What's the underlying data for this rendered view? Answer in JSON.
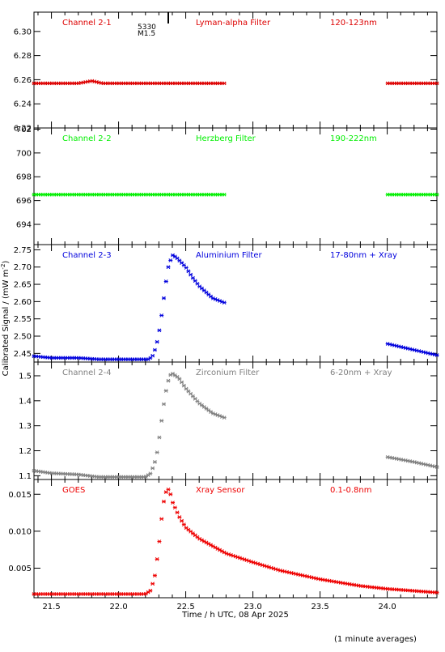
{
  "figure": {
    "ylabel": "Calibrated Signal / (mW m",
    "ylabel_sup": "-2",
    "ylabel_close": ")",
    "xlabel": "Time / h UTC, 08 Apr 2025",
    "footnote": "(1 minute averages)",
    "annotation": {
      "x": 22.37,
      "line1": "5330",
      "line2": "M1.5"
    }
  },
  "chart_data": [
    {
      "type": "scatter",
      "channel": "Channel 2-1",
      "filter": "Lyman-alpha Filter",
      "band": "120-123nm",
      "color": "#dd0000",
      "xlim": [
        21.37,
        24.37
      ],
      "ylim": [
        6.22,
        6.316
      ],
      "yticks": [
        6.22,
        6.24,
        6.26,
        6.28,
        6.3
      ],
      "ytick_labels": [
        "6.22",
        "6.24",
        "6.26",
        "6.28",
        "6.30"
      ],
      "gaps": [
        [
          22.8,
          24.0
        ]
      ],
      "profile": [
        [
          21.37,
          6.257
        ],
        [
          21.7,
          6.257
        ],
        [
          21.8,
          6.259
        ],
        [
          21.88,
          6.257
        ],
        [
          22.8,
          6.257
        ],
        [
          24.0,
          6.257
        ],
        [
          24.37,
          6.257
        ]
      ]
    },
    {
      "type": "scatter",
      "channel": "Channel 2-2",
      "filter": "Herzberg Filter",
      "band": "190-222nm",
      "color": "#00ee00",
      "xlim": [
        21.37,
        24.37
      ],
      "ylim": [
        692.3,
        702.1
      ],
      "yticks": [
        694,
        696,
        698,
        700,
        702
      ],
      "ytick_labels": [
        "694",
        "696",
        "698",
        "700",
        "702"
      ],
      "gaps": [
        [
          22.8,
          24.0
        ]
      ],
      "profile": [
        [
          21.37,
          696.5
        ],
        [
          22.8,
          696.5
        ],
        [
          24.0,
          696.5
        ],
        [
          24.37,
          696.5
        ]
      ]
    },
    {
      "type": "scatter",
      "channel": "Channel 2-3",
      "filter": "Aluminium Filter",
      "band": "17-80nm + Xray",
      "color": "#0000dd",
      "xlim": [
        21.37,
        24.37
      ],
      "ylim": [
        2.425,
        2.765
      ],
      "yticks": [
        2.45,
        2.5,
        2.55,
        2.6,
        2.65,
        2.7,
        2.75
      ],
      "ytick_labels": [
        "2.45",
        "2.50",
        "2.55",
        "2.60",
        "2.65",
        "2.70",
        "2.75"
      ],
      "gaps": [
        [
          22.8,
          24.0
        ]
      ],
      "profile": [
        [
          21.37,
          2.442
        ],
        [
          21.5,
          2.437
        ],
        [
          21.7,
          2.437
        ],
        [
          21.85,
          2.433
        ],
        [
          22.22,
          2.433
        ],
        [
          22.25,
          2.44
        ],
        [
          22.28,
          2.47
        ],
        [
          22.31,
          2.53
        ],
        [
          22.33,
          2.59
        ],
        [
          22.35,
          2.65
        ],
        [
          22.37,
          2.7
        ],
        [
          22.4,
          2.735
        ],
        [
          22.43,
          2.728
        ],
        [
          22.5,
          2.7
        ],
        [
          22.55,
          2.67
        ],
        [
          22.6,
          2.645
        ],
        [
          22.7,
          2.61
        ],
        [
          22.8,
          2.595
        ],
        [
          24.0,
          2.478
        ],
        [
          24.2,
          2.46
        ],
        [
          24.37,
          2.445
        ]
      ]
    },
    {
      "type": "scatter",
      "channel": "Channel 2-4",
      "filter": "Zirconium Filter",
      "band": "6-20nm + Xray",
      "color": "#808080",
      "xlim": [
        21.37,
        24.37
      ],
      "ylim": [
        1.085,
        1.555
      ],
      "yticks": [
        1.1,
        1.2,
        1.3,
        1.4,
        1.5
      ],
      "ytick_labels": [
        "1.1",
        "1.2",
        "1.3",
        "1.4",
        "1.5"
      ],
      "gaps": [
        [
          22.8,
          24.0
        ]
      ],
      "profile": [
        [
          21.37,
          1.12
        ],
        [
          21.5,
          1.11
        ],
        [
          21.7,
          1.105
        ],
        [
          21.85,
          1.095
        ],
        [
          22.2,
          1.095
        ],
        [
          22.24,
          1.11
        ],
        [
          22.28,
          1.17
        ],
        [
          22.3,
          1.24
        ],
        [
          22.32,
          1.32
        ],
        [
          22.34,
          1.4
        ],
        [
          22.36,
          1.46
        ],
        [
          22.38,
          1.5
        ],
        [
          22.4,
          1.51
        ],
        [
          22.45,
          1.49
        ],
        [
          22.5,
          1.45
        ],
        [
          22.6,
          1.39
        ],
        [
          22.7,
          1.35
        ],
        [
          22.8,
          1.33
        ],
        [
          24.0,
          1.175
        ],
        [
          24.2,
          1.155
        ],
        [
          24.37,
          1.135
        ]
      ]
    },
    {
      "type": "scatter",
      "channel": "GOES",
      "filter": "Xray Sensor",
      "band": "0.1-0.8nm",
      "color": "#ee0000",
      "xlim": [
        21.37,
        24.37
      ],
      "ylim": [
        0.001,
        0.017
      ],
      "yticks": [
        0.005,
        0.01,
        0.015
      ],
      "ytick_labels": [
        "0.005",
        "0.010",
        "0.015"
      ],
      "gaps": [],
      "profile": [
        [
          21.37,
          0.0015
        ],
        [
          21.8,
          0.0015
        ],
        [
          22.2,
          0.0015
        ],
        [
          22.24,
          0.002
        ],
        [
          22.27,
          0.004
        ],
        [
          22.3,
          0.008
        ],
        [
          22.33,
          0.0135
        ],
        [
          22.36,
          0.0158
        ],
        [
          22.38,
          0.0155
        ],
        [
          22.4,
          0.014
        ],
        [
          22.45,
          0.012
        ],
        [
          22.5,
          0.0105
        ],
        [
          22.6,
          0.009
        ],
        [
          22.8,
          0.007
        ],
        [
          23.0,
          0.0058
        ],
        [
          23.2,
          0.0047
        ],
        [
          23.5,
          0.0035
        ],
        [
          23.8,
          0.0026
        ],
        [
          24.0,
          0.0022
        ],
        [
          24.37,
          0.0017
        ]
      ]
    }
  ],
  "xaxis": {
    "ticks": [
      21.5,
      22.0,
      22.5,
      23.0,
      23.5,
      24.0
    ],
    "tick_labels": [
      "21.5",
      "22.0",
      "22.5",
      "23.0",
      "23.5",
      "24.0"
    ],
    "minor_step": 0.1
  }
}
